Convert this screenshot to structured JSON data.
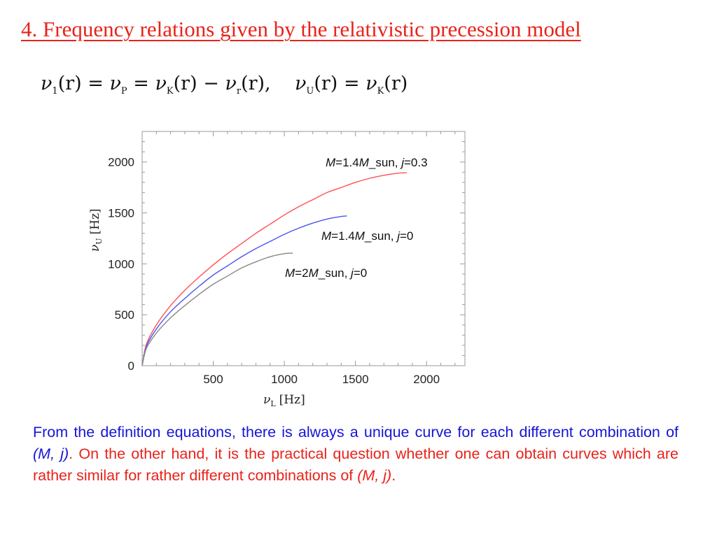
{
  "title": "4. Frequency relations given by the relativistic precession model",
  "equation": {
    "lhs1_symbol": "ν",
    "lhs1_sub": "1",
    "lhs1_arg": "(r)",
    "eq": "=",
    "p_symbol": "ν",
    "p_sub": "P",
    "k_symbol": "ν",
    "k_sub": "K",
    "k_arg": "(r)",
    "minus": "−",
    "r_symbol": "ν",
    "r_sub": "r",
    "r_arg": "(r),",
    "u_symbol": "ν",
    "u_sub": "U",
    "u_arg": "(r)",
    "k2_symbol": "ν",
    "k2_sub": "K",
    "k2_arg": "(r)"
  },
  "chart_data": {
    "type": "line",
    "title": "",
    "xlabel": "ν_L [Hz]",
    "ylabel": "ν_U [Hz]",
    "xlabel_symbol": "ν",
    "xlabel_sub": "L",
    "xlabel_unit": "[Hz]",
    "ylabel_symbol": "ν",
    "ylabel_sub": "U",
    "ylabel_unit": "[Hz]",
    "xlim": [
      0,
      2270
    ],
    "ylim": [
      0,
      2300
    ],
    "xticks": [
      500,
      1000,
      1500,
      2000
    ],
    "yticks": [
      0,
      500,
      1000,
      1500,
      2000
    ],
    "grid": false,
    "series": [
      {
        "name": "M=1.4M_sun, j=0.3",
        "label_parts": [
          "M",
          "=1.4",
          "M",
          "_sun, ",
          "j",
          "=0.3"
        ],
        "color": "#ff5050",
        "x": [
          0,
          30,
          100,
          200,
          300,
          400,
          500,
          600,
          700,
          800,
          900,
          1000,
          1100,
          1200,
          1300,
          1400,
          1500,
          1600,
          1700,
          1800,
          1860
        ],
        "y": [
          0,
          210,
          400,
          590,
          740,
          870,
          990,
          1100,
          1200,
          1300,
          1390,
          1480,
          1560,
          1630,
          1700,
          1750,
          1800,
          1840,
          1870,
          1890,
          1895
        ]
      },
      {
        "name": "M=1.4M_sun, j=0",
        "label_parts": [
          "M",
          "=1.4",
          "M",
          "_sun, ",
          "j",
          "=0"
        ],
        "color": "#4a56f0",
        "x": [
          0,
          30,
          100,
          200,
          300,
          400,
          500,
          600,
          700,
          800,
          900,
          1000,
          1100,
          1200,
          1300,
          1400,
          1440
        ],
        "y": [
          0,
          190,
          360,
          530,
          660,
          780,
          890,
          980,
          1070,
          1150,
          1220,
          1290,
          1350,
          1400,
          1440,
          1465,
          1470
        ]
      },
      {
        "name": "M=2M_sun, j=0",
        "label_parts": [
          "M",
          "=2",
          "M",
          "_sun, ",
          "j",
          "=0"
        ],
        "color": "#888888",
        "x": [
          0,
          30,
          100,
          200,
          300,
          400,
          500,
          600,
          700,
          800,
          900,
          1000,
          1060
        ],
        "y": [
          0,
          170,
          320,
          470,
          590,
          700,
          800,
          880,
          960,
          1020,
          1070,
          1100,
          1105
        ]
      }
    ]
  },
  "text": {
    "part1": "From the definition equations, there is always a unique curve for each different combination of ",
    "mj1": "(M, j)",
    "period1": ".",
    "part2": " On the other hand, it is the practical question whether one can obtain curves which are rather similar for rather different combinations of ",
    "mj2": "(M, j)",
    "period2": "."
  },
  "colors": {
    "title": "#e8231a",
    "body_blue": "#1515d6",
    "body_red": "#e8231a"
  }
}
